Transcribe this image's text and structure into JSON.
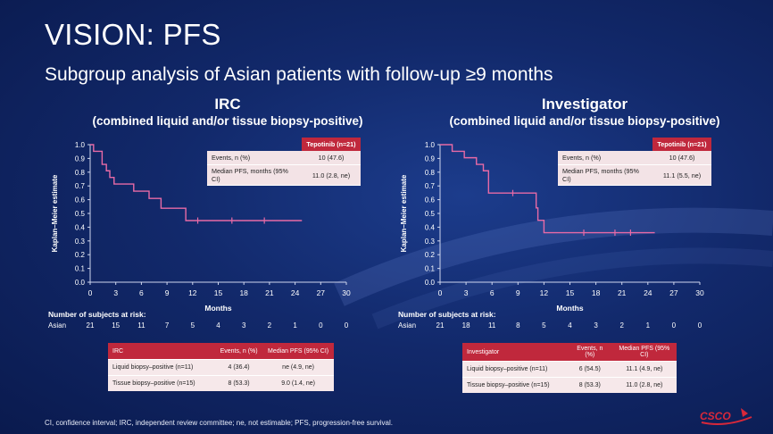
{
  "title": "VISION: PFS",
  "subtitle": "Subgroup analysis of Asian patients with follow-up ≥9 months",
  "footnote": "CI, confidence interval; IRC, independent review committee; ne, not estimable; PFS, progression-free survival.",
  "logo_text": "CSCO",
  "colors": {
    "accent": "#c0283c",
    "curve": "#e86aa6",
    "background": "#12296b"
  },
  "chart_data": [
    {
      "type": "line",
      "panel": "left",
      "title": "IRC",
      "subtitle": "(combined liquid and/or tissue biopsy-positive)",
      "xlabel": "Months",
      "ylabel": "Kaplan–Meier estimate",
      "xlim": [
        0,
        30
      ],
      "ylim": [
        0,
        1.0
      ],
      "xticks": [
        "0",
        "3",
        "6",
        "9",
        "12",
        "15",
        "18",
        "21",
        "24",
        "27",
        "30"
      ],
      "yticks": [
        "0.0",
        "0.1",
        "0.2",
        "0.3",
        "0.4",
        "0.5",
        "0.6",
        "0.7",
        "0.8",
        "0.9",
        "1.0"
      ],
      "series": [
        {
          "step_x": [
            0,
            0.4,
            1.4,
            1.9,
            2.3,
            2.8,
            5.1,
            6.9,
            8.3,
            11.2,
            24.8
          ],
          "step_y": [
            1.0,
            0.952,
            0.857,
            0.81,
            0.762,
            0.714,
            0.662,
            0.609,
            0.538,
            0.448,
            0.448
          ],
          "censor_x": [
            12.6,
            16.6,
            20.4
          ],
          "censor_y": [
            0.448,
            0.448,
            0.448
          ]
        }
      ],
      "inset": {
        "header": "Tepotinib (n=21)",
        "rows": [
          {
            "label": "Events, n (%)",
            "value": "10 (47.6)"
          },
          {
            "label": "Median PFS, months (95% CI)",
            "value": "11.0 (2.8, ne)"
          }
        ]
      },
      "risk": {
        "title": "Number of subjects at risk:",
        "row_label": "Asian",
        "values": [
          "21",
          "15",
          "11",
          "7",
          "5",
          "4",
          "3",
          "2",
          "1",
          "0",
          "0"
        ]
      },
      "subgroup_table": {
        "headers": [
          "IRC",
          "Events, n (%)",
          "Median PFS (95% CI)"
        ],
        "rows": [
          [
            "Liquid biopsy–positive (n=11)",
            "4 (36.4)",
            "ne (4.9, ne)"
          ],
          [
            "Tissue biopsy–positive (n=15)",
            "8 (53.3)",
            "9.0 (1.4, ne)"
          ]
        ]
      }
    },
    {
      "type": "line",
      "panel": "right",
      "title": "Investigator",
      "subtitle": "(combined liquid and/or tissue biopsy-positive)",
      "xlabel": "Months",
      "ylabel": "Kaplan–Meier estimate",
      "xlim": [
        0,
        30
      ],
      "ylim": [
        0,
        1.0
      ],
      "xticks": [
        "0",
        "3",
        "6",
        "9",
        "12",
        "15",
        "18",
        "21",
        "24",
        "27",
        "30"
      ],
      "yticks": [
        "0.0",
        "0.1",
        "0.2",
        "0.3",
        "0.4",
        "0.5",
        "0.6",
        "0.7",
        "0.8",
        "0.9",
        "1.0"
      ],
      "series": [
        {
          "step_x": [
            0,
            1.4,
            2.8,
            4.2,
            5.0,
            5.6,
            11.1,
            11.3,
            12.0,
            24.8
          ],
          "step_y": [
            1.0,
            0.952,
            0.905,
            0.857,
            0.81,
            0.648,
            0.54,
            0.45,
            0.36,
            0.36
          ],
          "censor_x": [
            8.4,
            16.6,
            20.2,
            22.0
          ],
          "censor_y": [
            0.648,
            0.36,
            0.36,
            0.36
          ]
        }
      ],
      "inset": {
        "header": "Tepotinib (n=21)",
        "rows": [
          {
            "label": "Events, n (%)",
            "value": "10 (47.6)"
          },
          {
            "label": "Median PFS, months (95% CI)",
            "value": "11.1 (5.5, ne)"
          }
        ]
      },
      "risk": {
        "title": "Number of subjects at risk:",
        "row_label": "Asian",
        "values": [
          "21",
          "18",
          "11",
          "8",
          "5",
          "4",
          "3",
          "2",
          "1",
          "0",
          "0"
        ]
      },
      "subgroup_table": {
        "headers": [
          "Investigator",
          "Events, n (%)",
          "Median PFS (95% CI)"
        ],
        "rows": [
          [
            "Liquid biopsy–positive (n=11)",
            "6 (54.5)",
            "11.1 (4.9, ne)"
          ],
          [
            "Tissue biopsy–positive (n=15)",
            "8 (53.3)",
            "11.0 (2.8, ne)"
          ]
        ]
      }
    }
  ]
}
